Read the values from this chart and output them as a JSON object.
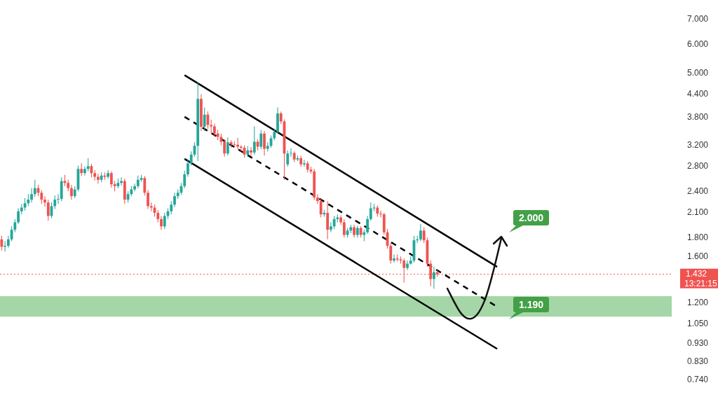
{
  "chart_data": {
    "type": "candlestick",
    "categories": [
      null,
      null,
      null,
      null,
      null,
      null,
      null,
      null,
      null,
      null,
      null,
      null,
      null,
      null,
      null,
      null,
      null,
      null,
      null,
      null,
      null,
      null,
      null,
      null,
      null,
      null,
      null,
      null,
      null,
      null,
      null,
      null,
      null,
      null,
      null,
      null,
      null,
      null,
      null,
      null,
      null,
      null,
      null,
      null,
      null,
      null,
      null,
      null,
      null,
      null,
      null,
      null,
      null,
      null,
      null,
      null,
      null,
      null,
      null,
      null,
      null,
      null,
      null,
      null,
      null,
      null,
      null,
      null,
      null,
      null,
      null,
      null,
      null,
      null,
      null,
      null,
      null,
      null,
      null,
      null,
      null,
      null,
      null,
      null,
      null,
      null,
      null,
      null,
      null,
      null,
      null,
      null,
      null,
      null,
      null,
      null,
      null,
      null,
      null,
      null,
      null,
      null,
      null,
      null,
      null,
      null,
      null,
      null,
      null,
      null,
      null,
      null,
      null,
      null,
      null,
      null,
      null,
      null,
      null,
      null,
      null,
      null,
      null,
      null,
      null,
      null,
      null,
      null,
      null,
      null,
      null,
      null,
      null,
      null,
      null,
      null,
      null,
      null,
      null,
      null,
      null,
      null,
      null,
      null,
      null,
      null,
      null,
      null,
      null,
      null,
      null,
      null,
      null,
      null,
      null,
      null,
      null,
      null,
      null,
      null,
      null,
      null,
      null,
      null,
      null,
      null,
      null,
      null,
      null,
      null,
      null,
      null,
      null,
      null,
      null,
      null,
      null,
      null,
      null,
      null,
      null,
      null,
      null,
      null,
      null,
      null,
      null,
      null,
      null,
      null,
      null,
      null,
      null,
      null,
      null,
      null,
      null,
      null,
      null,
      null,
      null,
      null
    ],
    "ohlc": [
      [
        1.78,
        1.82,
        1.66,
        1.7
      ],
      [
        1.7,
        1.76,
        1.65,
        1.71
      ],
      [
        1.71,
        1.82,
        1.69,
        1.78
      ],
      [
        1.78,
        1.93,
        1.76,
        1.89
      ],
      [
        1.89,
        2.02,
        1.86,
        1.98
      ],
      [
        1.98,
        2.16,
        1.96,
        2.12
      ],
      [
        2.12,
        2.22,
        2.08,
        2.17
      ],
      [
        2.17,
        2.3,
        2.13,
        2.23
      ],
      [
        2.23,
        2.36,
        2.19,
        2.28
      ],
      [
        2.28,
        2.45,
        2.24,
        2.36
      ],
      [
        2.36,
        2.58,
        2.32,
        2.45
      ],
      [
        2.45,
        2.5,
        2.33,
        2.38
      ],
      [
        2.38,
        2.42,
        2.22,
        2.28
      ],
      [
        2.28,
        2.33,
        2.18,
        2.24
      ],
      [
        2.24,
        2.28,
        2.0,
        2.06
      ],
      [
        2.06,
        2.24,
        2.03,
        2.19
      ],
      [
        2.19,
        2.34,
        2.15,
        2.28
      ],
      [
        2.28,
        2.36,
        2.22,
        2.29
      ],
      [
        2.29,
        2.62,
        2.26,
        2.56
      ],
      [
        2.56,
        2.66,
        2.48,
        2.53
      ],
      [
        2.53,
        2.58,
        2.4,
        2.45
      ],
      [
        2.45,
        2.5,
        2.28,
        2.33
      ],
      [
        2.33,
        2.48,
        2.3,
        2.43
      ],
      [
        2.43,
        2.82,
        2.4,
        2.76
      ],
      [
        2.76,
        2.86,
        2.64,
        2.69
      ],
      [
        2.69,
        2.8,
        2.65,
        2.76
      ],
      [
        2.76,
        2.95,
        2.72,
        2.81
      ],
      [
        2.81,
        2.85,
        2.62,
        2.69
      ],
      [
        2.69,
        2.74,
        2.57,
        2.63
      ],
      [
        2.63,
        2.68,
        2.52,
        2.58
      ],
      [
        2.58,
        2.7,
        2.54,
        2.65
      ],
      [
        2.65,
        2.7,
        2.58,
        2.63
      ],
      [
        2.63,
        2.74,
        2.6,
        2.69
      ],
      [
        2.69,
        2.72,
        2.46,
        2.51
      ],
      [
        2.51,
        2.56,
        2.4,
        2.48
      ],
      [
        2.48,
        2.6,
        2.45,
        2.53
      ],
      [
        2.53,
        2.62,
        2.49,
        2.56
      ],
      [
        2.56,
        2.6,
        2.22,
        2.28
      ],
      [
        2.28,
        2.4,
        2.24,
        2.36
      ],
      [
        2.36,
        2.48,
        2.33,
        2.43
      ],
      [
        2.43,
        2.52,
        2.4,
        2.48
      ],
      [
        2.48,
        2.65,
        2.45,
        2.58
      ],
      [
        2.58,
        2.66,
        2.55,
        2.61
      ],
      [
        2.61,
        2.64,
        2.34,
        2.38
      ],
      [
        2.38,
        2.42,
        2.15,
        2.19
      ],
      [
        2.19,
        2.24,
        2.12,
        2.17
      ],
      [
        2.17,
        2.21,
        2.05,
        2.1
      ],
      [
        2.1,
        2.14,
        1.98,
        2.02
      ],
      [
        2.02,
        2.06,
        1.89,
        1.93
      ],
      [
        1.93,
        2.1,
        1.9,
        2.06
      ],
      [
        2.06,
        2.16,
        2.02,
        2.12
      ],
      [
        2.12,
        2.26,
        2.08,
        2.21
      ],
      [
        2.21,
        2.38,
        2.18,
        2.33
      ],
      [
        2.33,
        2.43,
        2.29,
        2.38
      ],
      [
        2.38,
        2.53,
        2.35,
        2.48
      ],
      [
        2.48,
        2.73,
        2.45,
        2.67
      ],
      [
        2.67,
        2.92,
        2.63,
        2.86
      ],
      [
        2.86,
        3.08,
        2.82,
        3.02
      ],
      [
        3.02,
        3.26,
        2.98,
        3.19
      ],
      [
        3.19,
        4.75,
        2.9,
        4.27
      ],
      [
        4.27,
        4.4,
        3.5,
        3.59
      ],
      [
        3.59,
        4.05,
        3.5,
        3.87
      ],
      [
        3.87,
        3.95,
        3.55,
        3.63
      ],
      [
        3.63,
        3.75,
        3.45,
        3.6
      ],
      [
        3.6,
        3.66,
        3.38,
        3.44
      ],
      [
        3.44,
        3.52,
        3.3,
        3.37
      ],
      [
        3.37,
        3.44,
        3.2,
        3.27
      ],
      [
        3.27,
        3.32,
        2.98,
        3.04
      ],
      [
        3.04,
        3.36,
        3.0,
        3.26
      ],
      [
        3.26,
        3.3,
        3.15,
        3.22
      ],
      [
        3.22,
        3.28,
        3.16,
        3.21
      ],
      [
        3.21,
        3.35,
        3.12,
        3.17
      ],
      [
        3.17,
        3.2,
        3.08,
        3.15
      ],
      [
        3.15,
        3.2,
        2.96,
        3.02
      ],
      [
        3.02,
        3.18,
        2.98,
        3.1
      ],
      [
        3.1,
        3.16,
        3.0,
        3.06
      ],
      [
        3.06,
        3.6,
        3.02,
        3.27
      ],
      [
        3.27,
        3.32,
        3.1,
        3.17
      ],
      [
        3.17,
        3.52,
        3.12,
        3.44
      ],
      [
        3.44,
        3.5,
        3.0,
        3.13
      ],
      [
        3.13,
        3.26,
        3.08,
        3.19
      ],
      [
        3.19,
        3.4,
        3.15,
        3.34
      ],
      [
        3.34,
        3.55,
        3.3,
        3.48
      ],
      [
        3.48,
        4.05,
        3.45,
        3.9
      ],
      [
        3.9,
        3.95,
        3.65,
        3.71
      ],
      [
        3.71,
        3.76,
        2.58,
        3.04
      ],
      [
        2.84,
        3.1,
        2.8,
        3.04
      ],
      [
        3.04,
        3.14,
        2.98,
        3.05
      ],
      [
        3.05,
        3.08,
        2.88,
        2.93
      ],
      [
        2.93,
        3.0,
        2.9,
        2.95
      ],
      [
        2.95,
        3.0,
        2.8,
        2.84
      ],
      [
        2.84,
        2.92,
        2.8,
        2.86
      ],
      [
        2.86,
        2.9,
        2.7,
        2.75
      ],
      [
        2.75,
        2.8,
        2.68,
        2.72
      ],
      [
        2.72,
        2.76,
        2.28,
        2.31
      ],
      [
        2.31,
        2.36,
        2.22,
        2.26
      ],
      [
        2.26,
        2.3,
        2.04,
        2.08
      ],
      [
        2.08,
        2.14,
        2.05,
        2.1
      ],
      [
        2.1,
        2.26,
        1.78,
        1.89
      ],
      [
        1.89,
        1.98,
        1.86,
        1.93
      ],
      [
        1.93,
        2.06,
        1.9,
        2.02
      ],
      [
        2.02,
        2.08,
        1.98,
        2.04
      ],
      [
        2.04,
        2.07,
        1.95,
        1.98
      ],
      [
        1.98,
        2.02,
        1.8,
        1.83
      ],
      [
        1.83,
        1.91,
        1.8,
        1.88
      ],
      [
        1.88,
        1.95,
        1.85,
        1.92
      ],
      [
        1.92,
        1.95,
        1.8,
        1.83
      ],
      [
        1.83,
        1.94,
        1.8,
        1.91
      ],
      [
        1.91,
        1.93,
        1.8,
        1.83
      ],
      [
        1.83,
        1.89,
        1.76,
        1.86
      ],
      [
        1.86,
        2.06,
        1.84,
        2.02
      ],
      [
        2.02,
        2.24,
        2.0,
        2.16
      ],
      [
        2.16,
        2.22,
        2.12,
        2.17
      ],
      [
        2.17,
        2.2,
        2.05,
        2.09
      ],
      [
        2.09,
        2.13,
        2.04,
        2.08
      ],
      [
        2.08,
        2.1,
        1.83,
        1.86
      ],
      [
        1.86,
        1.9,
        1.68,
        1.71
      ],
      [
        1.71,
        1.74,
        1.53,
        1.56
      ],
      [
        1.56,
        1.62,
        1.54,
        1.58
      ],
      [
        1.58,
        1.62,
        1.55,
        1.57
      ],
      [
        1.57,
        1.6,
        1.53,
        1.56
      ],
      [
        1.56,
        1.58,
        1.36,
        1.49
      ],
      [
        1.49,
        1.56,
        1.47,
        1.53
      ],
      [
        1.53,
        1.6,
        1.52,
        1.56
      ],
      [
        1.56,
        1.82,
        1.54,
        1.77
      ],
      [
        1.77,
        1.82,
        1.74,
        1.78
      ],
      [
        1.78,
        1.96,
        1.76,
        1.88
      ],
      [
        1.88,
        1.92,
        1.74,
        1.77
      ],
      [
        1.77,
        1.8,
        1.5,
        1.53
      ],
      [
        1.53,
        1.56,
        1.33,
        1.39
      ],
      [
        1.39,
        1.5,
        1.31,
        1.45
      ],
      [
        1.45,
        1.47,
        1.41,
        1.432
      ],
      null,
      null,
      null,
      null,
      null,
      null,
      null,
      null,
      null,
      null,
      null,
      null,
      null,
      null,
      null,
      null,
      null,
      null,
      null,
      null,
      null,
      null,
      null,
      null,
      null,
      null,
      null,
      null,
      null,
      null,
      null,
      null,
      null,
      null,
      null,
      null,
      null,
      null,
      null,
      null,
      null,
      null,
      null,
      null,
      null,
      null,
      null,
      null,
      null,
      null,
      null,
      null,
      null,
      null,
      null,
      null,
      null,
      null,
      null,
      null,
      null,
      null,
      null,
      null,
      null,
      null,
      null,
      null,
      null,
      null
    ],
    "series": [
      {
        "type": "line",
        "color": "#000000",
        "line_style": "solid",
        "values": [
          null,
          null,
          null,
          null,
          null,
          null,
          null,
          null,
          null,
          null,
          null,
          null,
          null,
          null,
          null,
          null,
          null,
          null,
          null,
          null,
          null,
          null,
          null,
          null,
          null,
          null,
          null,
          null,
          null,
          null,
          null,
          null,
          null,
          null,
          null,
          null,
          null,
          null,
          null,
          null,
          null,
          null,
          null,
          null,
          null,
          null,
          null,
          null,
          null,
          null,
          null,
          null,
          null,
          null,
          null,
          4.95,
          null,
          null,
          null,
          null,
          null,
          null,
          null,
          null,
          null,
          null,
          null,
          null,
          null,
          null,
          null,
          null,
          null,
          null,
          null,
          null,
          null,
          null,
          null,
          null,
          null,
          null,
          null,
          null,
          null,
          null,
          null,
          null,
          null,
          null,
          null,
          null,
          null,
          null,
          null,
          null,
          null,
          null,
          null,
          null,
          null,
          null,
          null,
          null,
          null,
          null,
          null,
          null,
          null,
          null,
          null,
          null,
          null,
          null,
          null,
          null,
          null,
          null,
          null,
          null,
          null,
          null,
          null,
          null,
          null,
          null,
          null,
          null,
          null,
          null,
          null,
          null,
          null,
          null,
          null,
          null,
          null,
          null,
          null,
          null,
          null,
          null,
          null,
          null,
          null,
          null,
          null,
          null,
          null,
          1.5,
          null,
          null,
          null,
          null,
          null,
          null,
          null,
          null,
          null,
          null,
          null,
          null,
          null,
          null,
          null,
          null,
          null,
          null,
          null,
          null,
          null,
          null,
          null,
          null,
          null,
          null,
          null,
          null,
          null,
          null,
          null,
          null,
          null,
          null,
          null,
          null,
          null,
          null,
          null,
          null,
          null,
          null,
          null,
          null,
          null,
          null,
          null,
          null,
          null,
          null,
          null,
          null
        ]
      },
      {
        "type": "line",
        "color": "#000000",
        "line_style": "dashed",
        "values": [
          null,
          null,
          null,
          null,
          null,
          null,
          null,
          null,
          null,
          null,
          null,
          null,
          null,
          null,
          null,
          null,
          null,
          null,
          null,
          null,
          null,
          null,
          null,
          null,
          null,
          null,
          null,
          null,
          null,
          null,
          null,
          null,
          null,
          null,
          null,
          null,
          null,
          null,
          null,
          null,
          null,
          null,
          null,
          null,
          null,
          null,
          null,
          null,
          null,
          null,
          null,
          null,
          null,
          null,
          null,
          3.82,
          null,
          null,
          null,
          null,
          null,
          null,
          null,
          null,
          null,
          null,
          null,
          null,
          null,
          null,
          null,
          null,
          null,
          null,
          null,
          null,
          null,
          null,
          null,
          null,
          null,
          null,
          null,
          null,
          null,
          null,
          null,
          null,
          null,
          null,
          null,
          null,
          null,
          null,
          null,
          null,
          null,
          null,
          null,
          null,
          null,
          null,
          null,
          null,
          null,
          null,
          null,
          null,
          null,
          null,
          null,
          null,
          null,
          null,
          null,
          null,
          null,
          null,
          null,
          null,
          null,
          null,
          null,
          null,
          null,
          null,
          null,
          null,
          null,
          null,
          null,
          null,
          null,
          null,
          null,
          null,
          null,
          null,
          null,
          null,
          null,
          null,
          null,
          null,
          null,
          null,
          null,
          null,
          null,
          1.17,
          null,
          null,
          null,
          null,
          null,
          null,
          null,
          null,
          null,
          null,
          null,
          null,
          null,
          null,
          null,
          null,
          null,
          null,
          null,
          null,
          null,
          null,
          null,
          null,
          null,
          null,
          null,
          null,
          null,
          null,
          null,
          null,
          null,
          null,
          null,
          null,
          null,
          null,
          null,
          null,
          null,
          null,
          null,
          null,
          null,
          null,
          null,
          null,
          null,
          null,
          null,
          null
        ]
      },
      {
        "type": "line",
        "color": "#000000",
        "line_style": "solid",
        "values": [
          null,
          null,
          null,
          null,
          null,
          null,
          null,
          null,
          null,
          null,
          null,
          null,
          null,
          null,
          null,
          null,
          null,
          null,
          null,
          null,
          null,
          null,
          null,
          null,
          null,
          null,
          null,
          null,
          null,
          null,
          null,
          null,
          null,
          null,
          null,
          null,
          null,
          null,
          null,
          null,
          null,
          null,
          null,
          null,
          null,
          null,
          null,
          null,
          null,
          null,
          null,
          null,
          null,
          null,
          null,
          2.94,
          null,
          null,
          null,
          null,
          null,
          null,
          null,
          null,
          null,
          null,
          null,
          null,
          null,
          null,
          null,
          null,
          null,
          null,
          null,
          null,
          null,
          null,
          null,
          null,
          null,
          null,
          null,
          null,
          null,
          null,
          null,
          null,
          null,
          null,
          null,
          null,
          null,
          null,
          null,
          null,
          null,
          null,
          null,
          null,
          null,
          null,
          null,
          null,
          null,
          null,
          null,
          null,
          null,
          null,
          null,
          null,
          null,
          null,
          null,
          null,
          null,
          null,
          null,
          null,
          null,
          null,
          null,
          null,
          null,
          null,
          null,
          null,
          null,
          null,
          null,
          null,
          null,
          null,
          null,
          null,
          null,
          null,
          null,
          null,
          null,
          null,
          null,
          null,
          null,
          null,
          null,
          null,
          null,
          0.9,
          null,
          null,
          null,
          null,
          null,
          null,
          null,
          null,
          null,
          null,
          null,
          null,
          null,
          null,
          null,
          null,
          null,
          null,
          null,
          null,
          null,
          null,
          null,
          null,
          null,
          null,
          null,
          null,
          null,
          null,
          null,
          null,
          null,
          null,
          null,
          null,
          null,
          null,
          null,
          null,
          null,
          null,
          null,
          null,
          null,
          null,
          null,
          null,
          null,
          null,
          null,
          null
        ]
      }
    ],
    "colors": [
      "#ef5350",
      "#26a69a",
      "#26a69a",
      "#26a69a",
      "#26a69a",
      "#26a69a",
      "#26a69a",
      "#26a69a",
      "#26a69a",
      "#26a69a",
      "#26a69a",
      "#ef5350",
      "#ef5350",
      "#ef5350",
      "#ef5350",
      "#26a69a",
      "#26a69a",
      "#26a69a",
      "#26a69a",
      "#ef5350",
      "#ef5350",
      "#ef5350",
      "#26a69a",
      "#26a69a",
      "#ef5350",
      "#26a69a",
      "#26a69a",
      "#ef5350",
      "#ef5350",
      "#ef5350",
      "#26a69a",
      "#ef5350",
      "#26a69a",
      "#ef5350",
      "#ef5350",
      "#26a69a",
      "#26a69a",
      "#ef5350",
      "#26a69a",
      "#26a69a",
      "#26a69a",
      "#26a69a",
      "#26a69a",
      "#ef5350",
      "#ef5350",
      "#ef5350",
      "#ef5350",
      "#ef5350",
      "#ef5350",
      "#26a69a",
      "#26a69a",
      "#26a69a",
      "#26a69a",
      "#26a69a",
      "#26a69a",
      "#26a69a",
      "#26a69a",
      "#26a69a",
      "#26a69a",
      "#26a69a",
      "#ef5350",
      "#26a69a",
      "#ef5350",
      "#ef5350",
      "#ef5350",
      "#ef5350",
      "#ef5350",
      "#ef5350",
      "#26a69a",
      "#ef5350",
      "#ef5350",
      "#ef5350",
      "#ef5350",
      "#ef5350",
      "#26a69a",
      "#ef5350",
      "#26a69a",
      "#ef5350",
      "#26a69a",
      "#ef5350",
      "#26a69a",
      "#26a69a",
      "#26a69a",
      "#26a69a",
      "#ef5350",
      "#ef5350",
      "#26a69a",
      "#26a69a",
      "#ef5350",
      "#26a69a",
      "#ef5350",
      "#26a69a",
      "#ef5350",
      "#ef5350",
      "#ef5350",
      "#ef5350",
      "#ef5350",
      "#26a69a",
      "#ef5350",
      "#26a69a",
      "#26a69a",
      "#26a69a",
      "#ef5350",
      "#ef5350",
      "#26a69a",
      "#26a69a",
      "#ef5350",
      "#26a69a",
      "#ef5350",
      "#26a69a",
      "#26a69a",
      "#26a69a",
      "#26a69a",
      "#ef5350",
      "#ef5350",
      "#ef5350",
      "#ef5350",
      "#ef5350",
      "#26a69a",
      "#ef5350",
      "#ef5350",
      "#ef5350",
      "#26a69a",
      "#26a69a",
      "#26a69a",
      "#26a69a",
      "#26a69a",
      "#ef5350",
      "#ef5350",
      "#ef5350",
      "#26a69a",
      "#ef5350",
      null,
      null,
      null,
      null,
      null,
      null,
      null,
      null,
      null,
      null,
      null,
      null,
      null,
      null,
      null,
      null,
      null,
      null,
      null,
      null,
      null,
      null,
      null,
      null,
      null,
      null,
      null,
      null,
      null,
      null,
      null,
      null,
      null,
      null,
      null,
      null,
      null,
      null,
      null,
      null,
      null,
      null,
      null,
      null,
      null,
      null,
      null,
      null,
      null,
      null,
      null,
      null,
      null,
      null,
      null,
      null,
      null,
      null,
      null,
      null,
      null,
      null,
      null,
      null,
      null,
      null,
      null,
      null,
      null,
      null
    ],
    "ylim": [
      0.74,
      7
    ],
    "yticks": [
      {
        "value": 0.74,
        "label": "0.740"
      },
      {
        "value": 0.83,
        "label": "0.830"
      },
      {
        "value": 0.93,
        "label": "0.930"
      },
      {
        "value": 1.05,
        "label": "1.050"
      },
      {
        "value": 1.2,
        "label": "1.200"
      },
      {
        "value": 1.6,
        "label": "1.600"
      },
      {
        "value": 1.8,
        "label": "1.800"
      },
      {
        "value": 2.1,
        "label": "2.100"
      },
      {
        "value": 2.4,
        "label": "2.400"
      },
      {
        "value": 2.8,
        "label": "2.800"
      },
      {
        "value": 3.2,
        "label": "3.200"
      },
      {
        "value": 3.8,
        "label": "3.800"
      },
      {
        "value": 4.4,
        "label": "4.400"
      },
      {
        "value": 5,
        "label": "5.000"
      },
      {
        "value": 6,
        "label": "6.000"
      },
      {
        "value": 7,
        "label": "7.000"
      }
    ],
    "log": "y",
    "grid": false,
    "tick_labels": "y",
    "bands": [
      {
        "axis": "y",
        "from": 1.1,
        "to": 1.25,
        "color": "#a5d6a7"
      }
    ],
    "ref_lines": [
      {
        "axis": "y",
        "value": 1.432,
        "label": "1.432",
        "color": "#ef5350",
        "line_style": "dotted"
      }
    ],
    "annotations": [
      "2.000",
      "1.190",
      "13:21:15"
    ]
  }
}
